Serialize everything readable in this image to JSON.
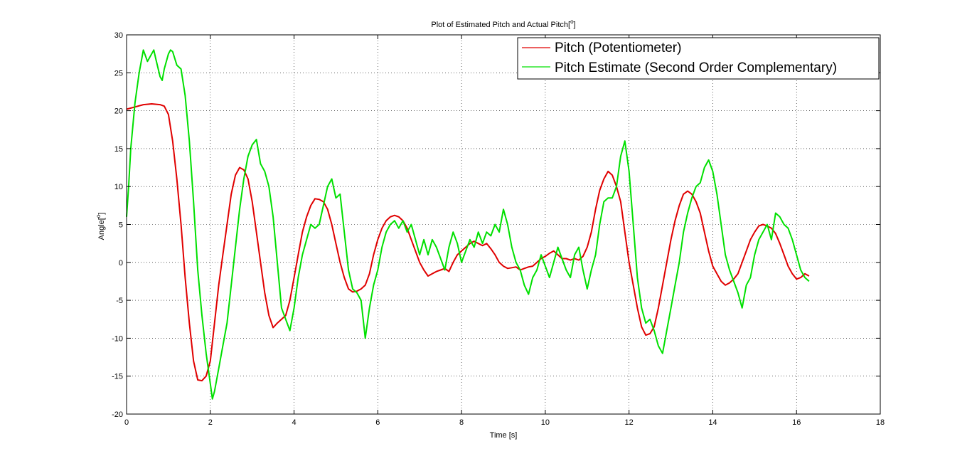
{
  "chart_data": {
    "type": "line",
    "title": "Plot of Estimated Pitch and Actual Pitch[",
    "title_sup": "o",
    "title_end": "]",
    "xlabel": "Time [s]",
    "ylabel": "Angle[",
    "ylabel_sup": "o",
    "ylabel_end": "]",
    "xlim": [
      0,
      18
    ],
    "ylim": [
      -20,
      30
    ],
    "xticks": [
      "0",
      "2",
      "4",
      "6",
      "8",
      "10",
      "12",
      "14",
      "16",
      "18"
    ],
    "yticks": [
      "-20",
      "-15",
      "-10",
      "-5",
      "0",
      "5",
      "10",
      "15",
      "20",
      "25",
      "30"
    ],
    "grid": true,
    "legend_position": "top-right",
    "series": [
      {
        "name": "Pitch (Potentiometer)",
        "color": "#e00000",
        "points": [
          [
            0,
            20.2
          ],
          [
            0.2,
            20.5
          ],
          [
            0.4,
            20.8
          ],
          [
            0.6,
            20.9
          ],
          [
            0.8,
            20.8
          ],
          [
            0.9,
            20.6
          ],
          [
            1.0,
            19.5
          ],
          [
            1.1,
            16
          ],
          [
            1.2,
            11
          ],
          [
            1.3,
            5
          ],
          [
            1.4,
            -2
          ],
          [
            1.5,
            -8
          ],
          [
            1.6,
            -13
          ],
          [
            1.7,
            -15.5
          ],
          [
            1.8,
            -15.6
          ],
          [
            1.9,
            -15
          ],
          [
            2.0,
            -13
          ],
          [
            2.1,
            -8
          ],
          [
            2.2,
            -3
          ],
          [
            2.3,
            1
          ],
          [
            2.4,
            5
          ],
          [
            2.5,
            9
          ],
          [
            2.6,
            11.5
          ],
          [
            2.7,
            12.5
          ],
          [
            2.8,
            12.2
          ],
          [
            2.9,
            11
          ],
          [
            3.0,
            8
          ],
          [
            3.1,
            4
          ],
          [
            3.2,
            0
          ],
          [
            3.3,
            -4
          ],
          [
            3.4,
            -7
          ],
          [
            3.5,
            -8.6
          ],
          [
            3.6,
            -8
          ],
          [
            3.7,
            -7.5
          ],
          [
            3.8,
            -7
          ],
          [
            3.9,
            -5
          ],
          [
            4.0,
            -2
          ],
          [
            4.1,
            1
          ],
          [
            4.2,
            4
          ],
          [
            4.3,
            6
          ],
          [
            4.4,
            7.5
          ],
          [
            4.5,
            8.4
          ],
          [
            4.6,
            8.3
          ],
          [
            4.7,
            8
          ],
          [
            4.8,
            7
          ],
          [
            4.9,
            5
          ],
          [
            5.0,
            2.5
          ],
          [
            5.1,
            0
          ],
          [
            5.2,
            -2
          ],
          [
            5.3,
            -3.5
          ],
          [
            5.4,
            -3.9
          ],
          [
            5.5,
            -3.8
          ],
          [
            5.6,
            -3.5
          ],
          [
            5.7,
            -3
          ],
          [
            5.8,
            -1.5
          ],
          [
            5.9,
            1
          ],
          [
            6.0,
            3
          ],
          [
            6.1,
            4.5
          ],
          [
            6.2,
            5.5
          ],
          [
            6.3,
            6
          ],
          [
            6.4,
            6.2
          ],
          [
            6.5,
            6
          ],
          [
            6.6,
            5.5
          ],
          [
            6.7,
            4.5
          ],
          [
            6.8,
            3
          ],
          [
            6.9,
            1.5
          ],
          [
            7.0,
            0
          ],
          [
            7.1,
            -1
          ],
          [
            7.2,
            -1.8
          ],
          [
            7.3,
            -1.5
          ],
          [
            7.4,
            -1.2
          ],
          [
            7.5,
            -1
          ],
          [
            7.6,
            -0.8
          ],
          [
            7.7,
            -1.2
          ],
          [
            7.8,
            0
          ],
          [
            7.9,
            1
          ],
          [
            8.0,
            1.5
          ],
          [
            8.1,
            2
          ],
          [
            8.2,
            2.5
          ],
          [
            8.3,
            2.8
          ],
          [
            8.4,
            2.5
          ],
          [
            8.5,
            2.2
          ],
          [
            8.6,
            2.5
          ],
          [
            8.7,
            1.8
          ],
          [
            8.8,
            1
          ],
          [
            8.9,
            0
          ],
          [
            9.0,
            -0.5
          ],
          [
            9.1,
            -0.8
          ],
          [
            9.2,
            -0.7
          ],
          [
            9.3,
            -0.6
          ],
          [
            9.4,
            -1
          ],
          [
            9.5,
            -0.8
          ],
          [
            9.6,
            -0.6
          ],
          [
            9.7,
            -0.5
          ],
          [
            9.8,
            0
          ],
          [
            9.9,
            0.5
          ],
          [
            10.0,
            0.8
          ],
          [
            10.1,
            1.2
          ],
          [
            10.2,
            1.5
          ],
          [
            10.3,
            1
          ],
          [
            10.4,
            0.5
          ],
          [
            10.5,
            0.5
          ],
          [
            10.6,
            0.3
          ],
          [
            10.7,
            0.5
          ],
          [
            10.8,
            0.3
          ],
          [
            10.9,
            0.8
          ],
          [
            11.0,
            2
          ],
          [
            11.1,
            4
          ],
          [
            11.2,
            7
          ],
          [
            11.3,
            9.5
          ],
          [
            11.4,
            11
          ],
          [
            11.5,
            12
          ],
          [
            11.6,
            11.5
          ],
          [
            11.7,
            10
          ],
          [
            11.8,
            8
          ],
          [
            11.9,
            4
          ],
          [
            12.0,
            0
          ],
          [
            12.1,
            -3
          ],
          [
            12.2,
            -6
          ],
          [
            12.3,
            -8.5
          ],
          [
            12.4,
            -9.6
          ],
          [
            12.5,
            -9.4
          ],
          [
            12.6,
            -8.5
          ],
          [
            12.7,
            -6
          ],
          [
            12.8,
            -3
          ],
          [
            12.9,
            0
          ],
          [
            13.0,
            3
          ],
          [
            13.1,
            5.5
          ],
          [
            13.2,
            7.5
          ],
          [
            13.3,
            9
          ],
          [
            13.4,
            9.4
          ],
          [
            13.5,
            9
          ],
          [
            13.6,
            8
          ],
          [
            13.7,
            6.5
          ],
          [
            13.8,
            4
          ],
          [
            13.9,
            1.5
          ],
          [
            14.0,
            -0.5
          ],
          [
            14.1,
            -1.5
          ],
          [
            14.2,
            -2.5
          ],
          [
            14.3,
            -3
          ],
          [
            14.4,
            -2.7
          ],
          [
            14.5,
            -2.2
          ],
          [
            14.6,
            -1.5
          ],
          [
            14.7,
            0
          ],
          [
            14.8,
            1.5
          ],
          [
            14.9,
            3
          ],
          [
            15.0,
            4
          ],
          [
            15.1,
            4.8
          ],
          [
            15.2,
            5
          ],
          [
            15.3,
            4.8
          ],
          [
            15.4,
            4.5
          ],
          [
            15.5,
            3.8
          ],
          [
            15.6,
            2.5
          ],
          [
            15.7,
            1
          ],
          [
            15.8,
            -0.5
          ],
          [
            15.9,
            -1.5
          ],
          [
            16.0,
            -2.2
          ],
          [
            16.1,
            -2
          ],
          [
            16.2,
            -1.5
          ],
          [
            16.3,
            -1.8
          ]
        ]
      },
      {
        "name": "Pitch Estimate (Second Order Complementary)",
        "color": "#00e000",
        "points": [
          [
            0,
            6
          ],
          [
            0.05,
            10
          ],
          [
            0.1,
            15
          ],
          [
            0.2,
            21
          ],
          [
            0.3,
            25
          ],
          [
            0.4,
            28
          ],
          [
            0.5,
            26.5
          ],
          [
            0.6,
            27.5
          ],
          [
            0.65,
            28
          ],
          [
            0.7,
            26.8
          ],
          [
            0.8,
            24.5
          ],
          [
            0.85,
            24
          ],
          [
            0.9,
            25.5
          ],
          [
            1.0,
            27.5
          ],
          [
            1.05,
            28
          ],
          [
            1.1,
            27.8
          ],
          [
            1.2,
            26
          ],
          [
            1.3,
            25.5
          ],
          [
            1.4,
            22
          ],
          [
            1.5,
            16
          ],
          [
            1.6,
            8
          ],
          [
            1.7,
            -1
          ],
          [
            1.8,
            -7
          ],
          [
            1.9,
            -12
          ],
          [
            2.0,
            -16
          ],
          [
            2.05,
            -18
          ],
          [
            2.1,
            -17
          ],
          [
            2.2,
            -14
          ],
          [
            2.3,
            -11
          ],
          [
            2.4,
            -8
          ],
          [
            2.5,
            -3
          ],
          [
            2.6,
            2
          ],
          [
            2.7,
            7
          ],
          [
            2.8,
            11
          ],
          [
            2.9,
            14
          ],
          [
            3.0,
            15.5
          ],
          [
            3.1,
            16.2
          ],
          [
            3.2,
            13
          ],
          [
            3.3,
            12
          ],
          [
            3.4,
            10
          ],
          [
            3.5,
            6
          ],
          [
            3.6,
            0
          ],
          [
            3.7,
            -6
          ],
          [
            3.8,
            -7.5
          ],
          [
            3.9,
            -9
          ],
          [
            4.0,
            -6
          ],
          [
            4.1,
            -2
          ],
          [
            4.2,
            1
          ],
          [
            4.3,
            3
          ],
          [
            4.4,
            5
          ],
          [
            4.5,
            4.5
          ],
          [
            4.6,
            5
          ],
          [
            4.7,
            7.5
          ],
          [
            4.8,
            10
          ],
          [
            4.9,
            11
          ],
          [
            5.0,
            8.5
          ],
          [
            5.1,
            9
          ],
          [
            5.2,
            4
          ],
          [
            5.3,
            -1
          ],
          [
            5.4,
            -3.5
          ],
          [
            5.5,
            -4
          ],
          [
            5.6,
            -5
          ],
          [
            5.7,
            -10
          ],
          [
            5.8,
            -6
          ],
          [
            5.9,
            -3
          ],
          [
            6.0,
            -1
          ],
          [
            6.1,
            2
          ],
          [
            6.2,
            4
          ],
          [
            6.3,
            5
          ],
          [
            6.4,
            5.5
          ],
          [
            6.5,
            4.5
          ],
          [
            6.6,
            5.5
          ],
          [
            6.7,
            4
          ],
          [
            6.8,
            5
          ],
          [
            6.9,
            3
          ],
          [
            7.0,
            1
          ],
          [
            7.1,
            3
          ],
          [
            7.2,
            1
          ],
          [
            7.3,
            3
          ],
          [
            7.4,
            2
          ],
          [
            7.5,
            0.5
          ],
          [
            7.6,
            -1
          ],
          [
            7.7,
            2
          ],
          [
            7.8,
            4
          ],
          [
            7.9,
            2.5
          ],
          [
            8.0,
            0
          ],
          [
            8.1,
            1.5
          ],
          [
            8.2,
            3
          ],
          [
            8.3,
            2
          ],
          [
            8.4,
            4
          ],
          [
            8.5,
            2.5
          ],
          [
            8.6,
            4
          ],
          [
            8.7,
            3.5
          ],
          [
            8.8,
            5
          ],
          [
            8.9,
            4
          ],
          [
            9.0,
            7
          ],
          [
            9.1,
            5
          ],
          [
            9.2,
            2
          ],
          [
            9.3,
            0
          ],
          [
            9.4,
            -1
          ],
          [
            9.5,
            -3
          ],
          [
            9.6,
            -4.2
          ],
          [
            9.7,
            -2
          ],
          [
            9.8,
            -1
          ],
          [
            9.9,
            1
          ],
          [
            10.0,
            -0.5
          ],
          [
            10.1,
            -2
          ],
          [
            10.2,
            0
          ],
          [
            10.3,
            2
          ],
          [
            10.4,
            0.5
          ],
          [
            10.5,
            -1
          ],
          [
            10.6,
            -2
          ],
          [
            10.7,
            1
          ],
          [
            10.8,
            2
          ],
          [
            10.9,
            -1
          ],
          [
            11.0,
            -3.5
          ],
          [
            11.1,
            -1
          ],
          [
            11.2,
            1
          ],
          [
            11.3,
            5
          ],
          [
            11.4,
            8
          ],
          [
            11.5,
            8.5
          ],
          [
            11.6,
            8.5
          ],
          [
            11.7,
            10
          ],
          [
            11.8,
            14
          ],
          [
            11.9,
            16
          ],
          [
            12.0,
            12
          ],
          [
            12.1,
            5
          ],
          [
            12.2,
            -2
          ],
          [
            12.3,
            -6
          ],
          [
            12.4,
            -8
          ],
          [
            12.5,
            -7.5
          ],
          [
            12.6,
            -9
          ],
          [
            12.7,
            -11
          ],
          [
            12.8,
            -12
          ],
          [
            12.9,
            -9
          ],
          [
            13.0,
            -6
          ],
          [
            13.1,
            -3
          ],
          [
            13.2,
            0
          ],
          [
            13.3,
            4
          ],
          [
            13.4,
            6.5
          ],
          [
            13.5,
            8.5
          ],
          [
            13.6,
            10
          ],
          [
            13.7,
            10.5
          ],
          [
            13.8,
            12.5
          ],
          [
            13.9,
            13.5
          ],
          [
            14.0,
            12
          ],
          [
            14.1,
            9
          ],
          [
            14.2,
            5
          ],
          [
            14.3,
            1
          ],
          [
            14.4,
            -1
          ],
          [
            14.5,
            -2.5
          ],
          [
            14.6,
            -4
          ],
          [
            14.7,
            -6
          ],
          [
            14.8,
            -3
          ],
          [
            14.9,
            -2
          ],
          [
            15.0,
            1
          ],
          [
            15.1,
            3
          ],
          [
            15.2,
            4
          ],
          [
            15.3,
            5
          ],
          [
            15.4,
            3
          ],
          [
            15.5,
            6.5
          ],
          [
            15.6,
            6
          ],
          [
            15.7,
            5
          ],
          [
            15.8,
            4.5
          ],
          [
            15.9,
            3
          ],
          [
            16.0,
            1
          ],
          [
            16.1,
            -1
          ],
          [
            16.2,
            -2
          ],
          [
            16.3,
            -2.5
          ]
        ]
      }
    ]
  }
}
